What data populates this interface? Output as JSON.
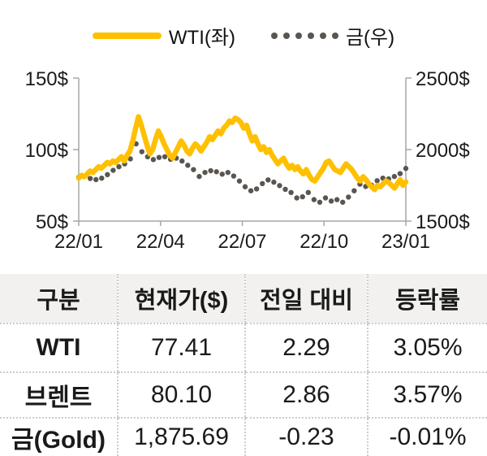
{
  "legend": {
    "wti_label": "WTI(좌)",
    "gold_label": "금(우)"
  },
  "colors": {
    "wti": "#FFC000",
    "gold": "#5A5550",
    "axis": "#A6A6A6",
    "text": "#1A1A1A",
    "header_bg": "#F2F1EF",
    "table_border": "#CFCCC7"
  },
  "chart_data": {
    "type": "line",
    "grid": false,
    "legend_position": "top",
    "x_axis": {
      "ticks": [
        "22/01",
        "22/04",
        "22/07",
        "22/10",
        "23/01"
      ]
    },
    "left_axis": {
      "ticks": [
        "150$",
        "100$",
        "50$"
      ],
      "min": 50,
      "max": 150
    },
    "right_axis": {
      "ticks": [
        "2500$",
        "2000$",
        "1500$"
      ],
      "min": 1500,
      "max": 2500
    },
    "series": [
      {
        "name": "WTI(좌)",
        "axis": "left",
        "style": "solid",
        "color": "#FFC000",
        "values": [
          80,
          82,
          81,
          83,
          85,
          84,
          86,
          88,
          87,
          89,
          91,
          90,
          92,
          91,
          93,
          95,
          92,
          96,
          99,
          106,
          115,
          123,
          117,
          110,
          103,
          97,
          100,
          107,
          113,
          109,
          104,
          100,
          96,
          94,
          98,
          102,
          106,
          103,
          99,
          97,
          101,
          104,
          102,
          99,
          102,
          105,
          109,
          107,
          110,
          113,
          111,
          115,
          117,
          120,
          119,
          122,
          121,
          119,
          115,
          117,
          111,
          106,
          109,
          104,
          100,
          102,
          98,
          100,
          96,
          93,
          90,
          92,
          94,
          90,
          87,
          89,
          86,
          88,
          85,
          83,
          86,
          82,
          79,
          78,
          81,
          84,
          87,
          91,
          92,
          89,
          86,
          85,
          84,
          87,
          90,
          88,
          86,
          83,
          80,
          78,
          81,
          79,
          76,
          74,
          72,
          75,
          74,
          76,
          78,
          77,
          75,
          73,
          76,
          79,
          75,
          77.41
        ]
      },
      {
        "name": "금(우)",
        "axis": "right",
        "style": "dotted",
        "color": "#5A5550",
        "values": [
          1805,
          1812,
          1798,
          1790,
          1800,
          1825,
          1855,
          1880,
          1900,
          1935,
          2040,
          1985,
          1950,
          1930,
          1945,
          1950,
          1932,
          1940,
          1920,
          1890,
          1860,
          1812,
          1840,
          1852,
          1845,
          1828,
          1840,
          1815,
          1780,
          1740,
          1712,
          1725,
          1762,
          1788,
          1772,
          1748,
          1722,
          1700,
          1662,
          1670,
          1700,
          1650,
          1632,
          1662,
          1640,
          1650,
          1632,
          1668,
          1712,
          1758,
          1742,
          1752,
          1782,
          1800,
          1795,
          1812,
          1832,
          1868
        ]
      }
    ]
  },
  "table": {
    "columns": [
      "구분",
      "현재가($)",
      "전일 대비",
      "등락률"
    ],
    "rows": [
      {
        "name": "WTI",
        "price": "77.41",
        "change": "2.29",
        "pct": "3.05%"
      },
      {
        "name": "브렌트",
        "price": "80.10",
        "change": "2.86",
        "pct": "3.57%"
      },
      {
        "name": "금(Gold)",
        "price": "1,875.69",
        "change": "-0.23",
        "pct": "-0.01%"
      }
    ]
  }
}
